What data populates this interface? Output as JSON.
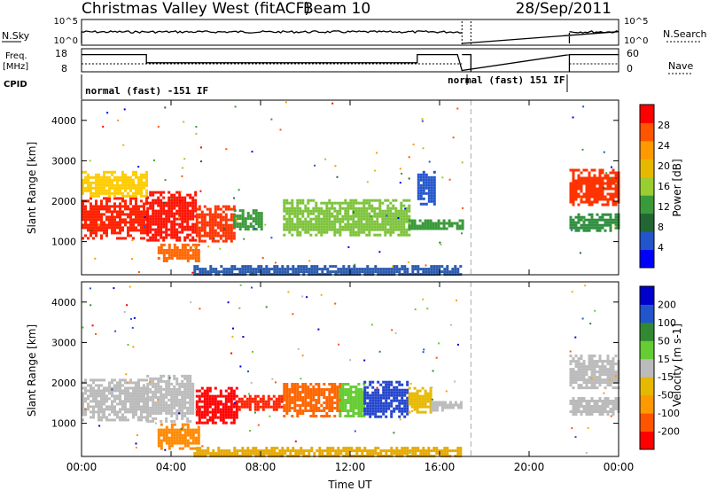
{
  "header": {
    "station": "Christmas Valley West (fitACF)",
    "beam": "Beam 10",
    "date": "28/Sep/2011"
  },
  "status_panels": {
    "nsky_label": "N.Sky",
    "nsearch_label": "N.Search",
    "noise_ticks": [
      "10^5",
      "10^0"
    ],
    "freq_label": "Freq.",
    "freq_unit": "[MHz]",
    "freq_ticks": [
      "18",
      "8"
    ],
    "nave_label": "Nave",
    "nave_ticks": [
      "60",
      "0"
    ],
    "cpid_label": "CPID",
    "cpid_segments": [
      {
        "text": "normal (fast) -151 IF",
        "start_hour": 0.0,
        "end_hour": 17.0
      },
      {
        "text": "normal (fast) 151 IF",
        "start_hour": 17.0,
        "end_hour": 21.8
      }
    ],
    "freq_series": {
      "hours": [
        0,
        2.9,
        2.9,
        15.0,
        15.0,
        16.8,
        16.8,
        17.0,
        21.8,
        24
      ],
      "mhz": [
        16,
        16,
        12,
        12,
        16,
        16,
        16,
        8.2,
        16,
        16
      ]
    },
    "data_gap_hours": [
      17.0,
      21.8
    ]
  },
  "chart_data": [
    {
      "type": "heatmap",
      "title": "Power",
      "ylabel": "Slant Range [km]",
      "xlabel": "Time UT",
      "ylim": [
        180,
        4500
      ],
      "y_ticks": [
        1000,
        2000,
        3000,
        4000
      ],
      "x_ticks": [
        "00:00",
        "04:00",
        "08:00",
        "12:00",
        "16:00",
        "20:00",
        "00:00"
      ],
      "xlim_hours": [
        0,
        24
      ],
      "colorbar": {
        "label": "Power [dB]",
        "ticks": [
          "28",
          "24",
          "20",
          "16",
          "12",
          "8",
          "4"
        ],
        "colors": [
          "#0000ff",
          "#2255cc",
          "#226633",
          "#3a9a3a",
          "#9acd32",
          "#e6b800",
          "#ff9900",
          "#ff5500",
          "#ff0000"
        ]
      },
      "regions": [
        {
          "t0": 0.0,
          "t1": 2.9,
          "r0": 1100,
          "r1": 2100,
          "color": "#ff2200"
        },
        {
          "t0": 0.0,
          "t1": 2.9,
          "r0": 2100,
          "r1": 2750,
          "color": "#ffcc00"
        },
        {
          "t0": 2.9,
          "t1": 5.1,
          "r0": 1050,
          "r1": 2250,
          "color": "#ff1100"
        },
        {
          "t0": 3.4,
          "t1": 5.2,
          "r0": 500,
          "r1": 950,
          "color": "#ff6600"
        },
        {
          "t0": 5.1,
          "t1": 6.8,
          "r0": 1000,
          "r1": 1900,
          "color": "#ff3300"
        },
        {
          "t0": 6.8,
          "t1": 8.1,
          "r0": 1300,
          "r1": 1800,
          "color": "#3a9a3a"
        },
        {
          "t0": 9.0,
          "t1": 14.6,
          "r0": 1150,
          "r1": 2050,
          "color": "#7cc23a"
        },
        {
          "t0": 14.6,
          "t1": 17.0,
          "r0": 1300,
          "r1": 1550,
          "color": "#3a9a3a"
        },
        {
          "t0": 15.0,
          "t1": 15.8,
          "r0": 1950,
          "r1": 2750,
          "color": "#2255cc"
        },
        {
          "t0": 5.0,
          "t1": 17.0,
          "r0": 180,
          "r1": 420,
          "color": "#2a5ab0"
        },
        {
          "t0": 21.8,
          "t1": 24.0,
          "r0": 1900,
          "r1": 2800,
          "color": "#ff3300"
        },
        {
          "t0": 21.8,
          "t1": 24.0,
          "r0": 1250,
          "r1": 1700,
          "color": "#2f8f3f"
        }
      ]
    },
    {
      "type": "heatmap",
      "title": "Velocity",
      "ylabel": "Slant Range [km]",
      "xlabel": "Time UT",
      "ylim": [
        180,
        4500
      ],
      "y_ticks": [
        1000,
        2000,
        3000,
        4000
      ],
      "x_ticks": [
        "00:00",
        "04:00",
        "08:00",
        "12:00",
        "16:00",
        "20:00",
        "00:00"
      ],
      "xlim_hours": [
        0,
        24
      ],
      "colorbar": {
        "label": "Velocity [m s-1]",
        "ticks": [
          "200",
          "100",
          "50",
          "15",
          "-15",
          "-50",
          "-100",
          "-200"
        ],
        "colors": [
          "#ff0000",
          "#ff5500",
          "#ff9900",
          "#e6b800",
          "#bbbbbb",
          "#66cc33",
          "#338833",
          "#2255cc",
          "#0000cc"
        ]
      },
      "regions": [
        {
          "t0": 0.0,
          "t1": 2.9,
          "r0": 1100,
          "r1": 2100,
          "color": "#bbbbbb"
        },
        {
          "t0": 2.9,
          "t1": 5.0,
          "r0": 1050,
          "r1": 2200,
          "color": "#bbbbbb"
        },
        {
          "t0": 3.4,
          "t1": 5.3,
          "r0": 400,
          "r1": 1000,
          "color": "#ff8800"
        },
        {
          "t0": 5.1,
          "t1": 7.0,
          "r0": 1000,
          "r1": 1900,
          "color": "#ff0000"
        },
        {
          "t0": 7.0,
          "t1": 9.0,
          "r0": 1350,
          "r1": 1700,
          "color": "#ff2200"
        },
        {
          "t0": 9.0,
          "t1": 11.5,
          "r0": 1150,
          "r1": 2000,
          "color": "#ff6600"
        },
        {
          "t0": 11.5,
          "t1": 12.6,
          "r0": 1150,
          "r1": 2000,
          "color": "#66cc33"
        },
        {
          "t0": 12.6,
          "t1": 14.6,
          "r0": 1150,
          "r1": 2050,
          "color": "#2244cc"
        },
        {
          "t0": 14.6,
          "t1": 15.6,
          "r0": 1300,
          "r1": 1900,
          "color": "#e6b800"
        },
        {
          "t0": 15.6,
          "t1": 17.0,
          "r0": 1350,
          "r1": 1550,
          "color": "#bbbbbb"
        },
        {
          "t0": 5.0,
          "t1": 17.0,
          "r0": 180,
          "r1": 420,
          "color": "#e6a800"
        },
        {
          "t0": 21.8,
          "t1": 24.0,
          "r0": 1900,
          "r1": 2700,
          "color": "#bbbbbb"
        },
        {
          "t0": 21.8,
          "t1": 24.0,
          "r0": 1250,
          "r1": 1650,
          "color": "#bbbbbb"
        }
      ]
    }
  ]
}
